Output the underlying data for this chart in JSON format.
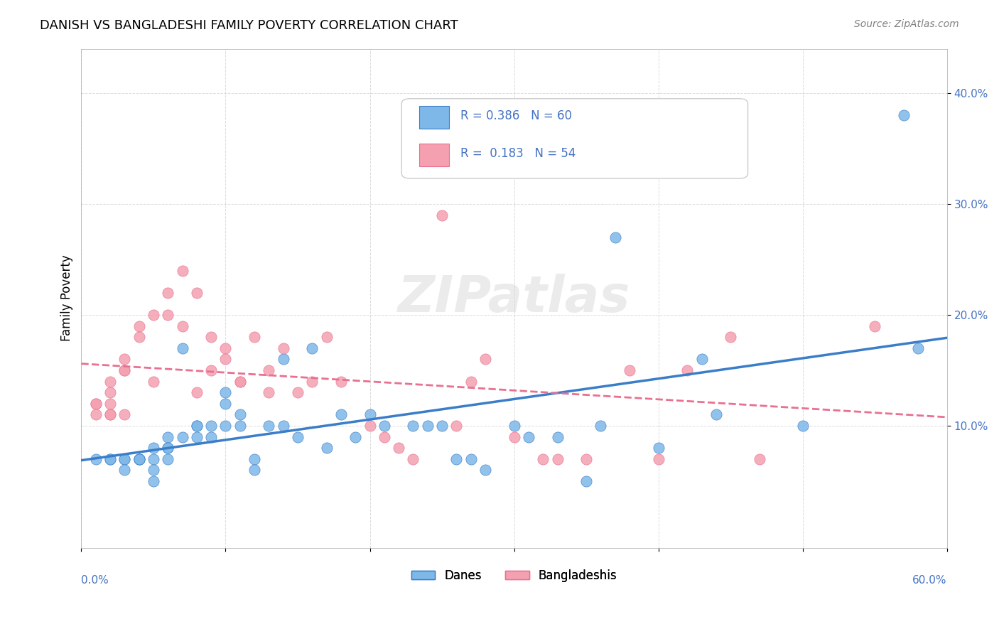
{
  "title": "DANISH VS BANGLADESHI FAMILY POVERTY CORRELATION CHART",
  "source": "Source: ZipAtlas.com",
  "ylabel": "Family Poverty",
  "xlim": [
    0.0,
    0.6
  ],
  "ylim": [
    -0.01,
    0.44
  ],
  "yticks": [
    0.1,
    0.2,
    0.3,
    0.4
  ],
  "ytick_labels": [
    "10.0%",
    "20.0%",
    "30.0%",
    "40.0%"
  ],
  "xticks": [
    0.0,
    0.1,
    0.2,
    0.3,
    0.4,
    0.5,
    0.6
  ],
  "blue_color": "#7EB8E8",
  "pink_color": "#F4A0B0",
  "trend_blue": "#3A7DC9",
  "trend_pink": "#E87090",
  "legend_R1": "R = 0.386",
  "legend_N1": "N = 60",
  "legend_R2": "R =  0.183",
  "legend_N2": "N = 54",
  "legend_label1": "Danes",
  "legend_label2": "Bangladeshis",
  "blue_x": [
    0.01,
    0.02,
    0.02,
    0.03,
    0.03,
    0.03,
    0.04,
    0.04,
    0.04,
    0.04,
    0.05,
    0.05,
    0.05,
    0.05,
    0.06,
    0.06,
    0.06,
    0.06,
    0.07,
    0.07,
    0.08,
    0.08,
    0.08,
    0.09,
    0.09,
    0.1,
    0.1,
    0.1,
    0.11,
    0.11,
    0.12,
    0.12,
    0.13,
    0.14,
    0.14,
    0.15,
    0.16,
    0.17,
    0.18,
    0.19,
    0.2,
    0.21,
    0.23,
    0.24,
    0.25,
    0.26,
    0.27,
    0.28,
    0.3,
    0.31,
    0.33,
    0.35,
    0.36,
    0.37,
    0.4,
    0.43,
    0.44,
    0.5,
    0.57,
    0.58
  ],
  "blue_y": [
    0.07,
    0.07,
    0.07,
    0.07,
    0.07,
    0.06,
    0.07,
    0.07,
    0.07,
    0.07,
    0.08,
    0.07,
    0.06,
    0.05,
    0.08,
    0.09,
    0.08,
    0.07,
    0.17,
    0.09,
    0.09,
    0.1,
    0.1,
    0.09,
    0.1,
    0.12,
    0.13,
    0.1,
    0.11,
    0.1,
    0.07,
    0.06,
    0.1,
    0.1,
    0.16,
    0.09,
    0.17,
    0.08,
    0.11,
    0.09,
    0.11,
    0.1,
    0.1,
    0.1,
    0.1,
    0.07,
    0.07,
    0.06,
    0.1,
    0.09,
    0.09,
    0.05,
    0.1,
    0.27,
    0.08,
    0.16,
    0.11,
    0.1,
    0.38,
    0.17
  ],
  "pink_x": [
    0.01,
    0.01,
    0.01,
    0.02,
    0.02,
    0.02,
    0.02,
    0.02,
    0.03,
    0.03,
    0.03,
    0.03,
    0.04,
    0.04,
    0.05,
    0.05,
    0.06,
    0.06,
    0.07,
    0.07,
    0.08,
    0.08,
    0.09,
    0.09,
    0.1,
    0.1,
    0.11,
    0.11,
    0.12,
    0.13,
    0.13,
    0.14,
    0.15,
    0.16,
    0.17,
    0.18,
    0.2,
    0.21,
    0.22,
    0.23,
    0.25,
    0.26,
    0.27,
    0.28,
    0.3,
    0.32,
    0.33,
    0.35,
    0.38,
    0.4,
    0.42,
    0.45,
    0.47,
    0.55
  ],
  "pink_y": [
    0.12,
    0.12,
    0.11,
    0.14,
    0.13,
    0.12,
    0.11,
    0.11,
    0.16,
    0.15,
    0.15,
    0.11,
    0.19,
    0.18,
    0.2,
    0.14,
    0.22,
    0.2,
    0.24,
    0.19,
    0.22,
    0.13,
    0.15,
    0.18,
    0.17,
    0.16,
    0.14,
    0.14,
    0.18,
    0.15,
    0.13,
    0.17,
    0.13,
    0.14,
    0.18,
    0.14,
    0.1,
    0.09,
    0.08,
    0.07,
    0.29,
    0.1,
    0.14,
    0.16,
    0.09,
    0.07,
    0.07,
    0.07,
    0.15,
    0.07,
    0.15,
    0.18,
    0.07,
    0.19
  ]
}
